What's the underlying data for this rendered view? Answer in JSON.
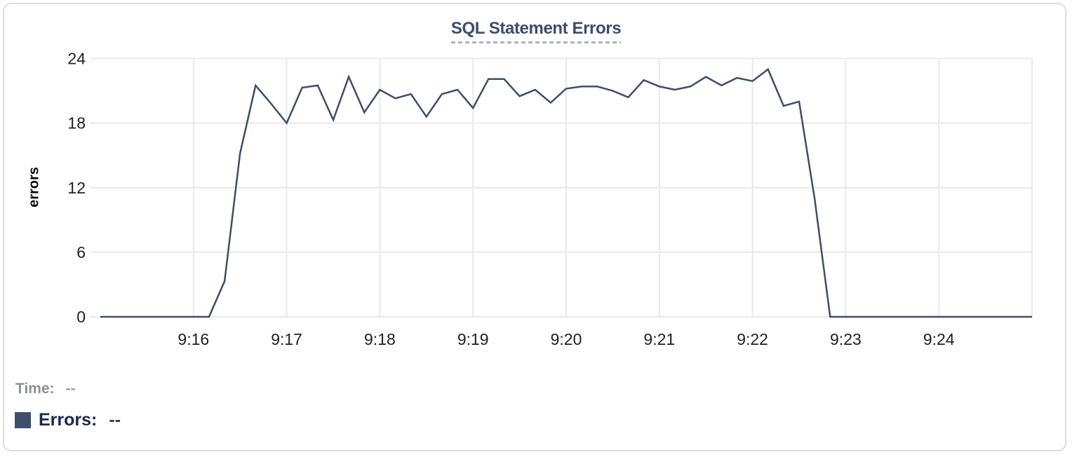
{
  "header": {
    "title": "SQL Statement Errors"
  },
  "legend": {
    "time_label": "Time:",
    "time_value": "--",
    "errors_label": "Errors:",
    "errors_value": "--"
  },
  "colors": {
    "line": "#3e4d6b",
    "swatch": "#3f4e6c",
    "grid": "#e8e9ec",
    "tick_text": "#1f1f1f",
    "title": "#3d4c6d",
    "title_underline": "#a9b3c6",
    "card_border": "#dddee1"
  },
  "chart_data": {
    "type": "line",
    "title": "SQL Statement Errors",
    "xlabel": "",
    "ylabel": "errors",
    "ylim": [
      0,
      24
    ],
    "y_ticks": [
      0,
      6,
      12,
      18,
      24
    ],
    "x_tick_labels": [
      "9:16",
      "9:17",
      "9:18",
      "9:19",
      "9:20",
      "9:21",
      "9:22",
      "9:23",
      "9:24"
    ],
    "unlabeled_gridline_at": "9:25",
    "grid": true,
    "legend_position": "bottom-left",
    "series": [
      {
        "name": "Errors",
        "sampling_interval_seconds": 10,
        "points": [
          [
            "9:15:00",
            0
          ],
          [
            "9:15:10",
            0
          ],
          [
            "9:15:20",
            0
          ],
          [
            "9:15:30",
            0
          ],
          [
            "9:15:40",
            0
          ],
          [
            "9:15:50",
            0
          ],
          [
            "9:16:00",
            0
          ],
          [
            "9:16:10",
            0
          ],
          [
            "9:16:20",
            3.3
          ],
          [
            "9:16:30",
            15.2
          ],
          [
            "9:16:40",
            21.5
          ],
          [
            "9:16:50",
            19.8
          ],
          [
            "9:17:00",
            18
          ],
          [
            "9:17:10",
            21.3
          ],
          [
            "9:17:20",
            21.5
          ],
          [
            "9:17:30",
            18.3
          ],
          [
            "9:17:40",
            22.3
          ],
          [
            "9:17:50",
            19
          ],
          [
            "9:18:00",
            21.1
          ],
          [
            "9:18:10",
            20.3
          ],
          [
            "9:18:20",
            20.7
          ],
          [
            "9:18:30",
            18.6
          ],
          [
            "9:18:40",
            20.7
          ],
          [
            "9:18:50",
            21.1
          ],
          [
            "9:19:00",
            19.4
          ],
          [
            "9:19:10",
            22.1
          ],
          [
            "9:19:20",
            22.1
          ],
          [
            "9:19:30",
            20.5
          ],
          [
            "9:19:40",
            21.1
          ],
          [
            "9:19:50",
            19.9
          ],
          [
            "9:20:00",
            21.2
          ],
          [
            "9:20:10",
            21.4
          ],
          [
            "9:20:20",
            21.4
          ],
          [
            "9:20:30",
            21.0
          ],
          [
            "9:20:40",
            20.4
          ],
          [
            "9:20:50",
            22.0
          ],
          [
            "9:21:00",
            21.4
          ],
          [
            "9:21:10",
            21.1
          ],
          [
            "9:21:20",
            21.4
          ],
          [
            "9:21:30",
            22.3
          ],
          [
            "9:21:40",
            21.5
          ],
          [
            "9:21:50",
            22.2
          ],
          [
            "9:22:00",
            21.9
          ],
          [
            "9:22:10",
            23
          ],
          [
            "9:22:20",
            19.6
          ],
          [
            "9:22:30",
            20
          ],
          [
            "9:22:40",
            11
          ],
          [
            "9:22:50",
            0
          ],
          [
            "9:23:00",
            0
          ],
          [
            "9:23:10",
            0
          ],
          [
            "9:23:20",
            0
          ],
          [
            "9:23:30",
            0
          ],
          [
            "9:23:40",
            0
          ],
          [
            "9:23:50",
            0
          ],
          [
            "9:24:00",
            0
          ],
          [
            "9:24:10",
            0
          ],
          [
            "9:24:20",
            0
          ],
          [
            "9:24:30",
            0
          ],
          [
            "9:24:40",
            0
          ],
          [
            "9:24:50",
            0
          ],
          [
            "9:25:00",
            0
          ]
        ]
      }
    ]
  }
}
